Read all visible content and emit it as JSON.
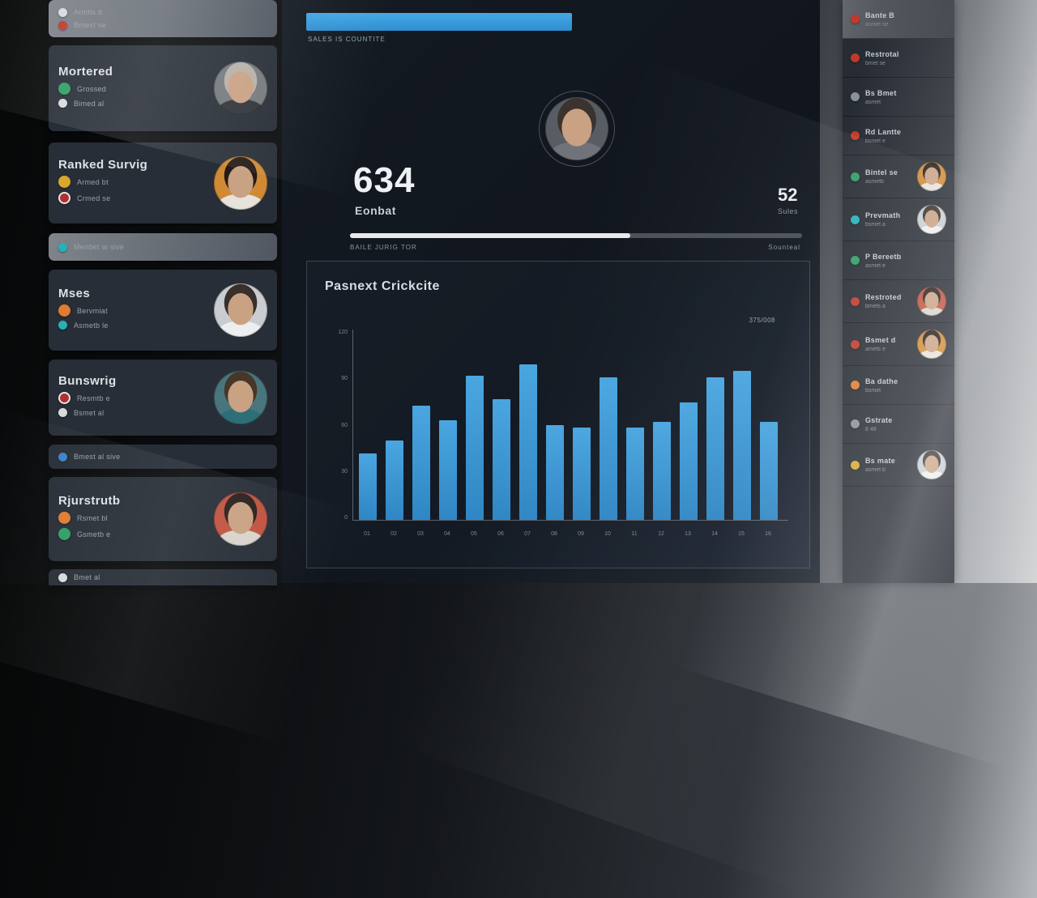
{
  "colors": {
    "accent_blue": "#3a9fdf",
    "bar_blue": "#3796d6",
    "progress_fill": "#e8e9ea",
    "progress_track": "#4a4f55",
    "panel_bg": "#141a22"
  },
  "left_sidebar": {
    "cards": [
      {
        "rows": [
          {
            "icon": "white-circle",
            "text": "Armtis b"
          },
          {
            "icon": "red-circle",
            "text": "Bmest se"
          }
        ]
      },
      {
        "title": "Mortered",
        "rows": [
          {
            "icon": "green-circle",
            "text": "Grossed"
          },
          {
            "icon": "white-circle",
            "text": "Bimed al"
          }
        ],
        "avatar": "man-gray"
      },
      {
        "title": "Ranked Survig",
        "rows": [
          {
            "icon": "yellow-circle",
            "text": "Armed bt"
          },
          {
            "icon": "red-badge",
            "text": "Crmed se"
          }
        ],
        "avatar": "woman-orange"
      },
      {
        "rows": [
          {
            "icon": "teal-circle",
            "text": "Menbet al sive"
          }
        ]
      },
      {
        "title": "Mses",
        "rows": [
          {
            "icon": "orange-circle",
            "text": "Bervmiat"
          },
          {
            "icon": "teal-circle",
            "text": "Asmetb le"
          }
        ],
        "avatar": "woman-light"
      },
      {
        "title": "Bunswrig",
        "rows": [
          {
            "icon": "red-badge",
            "text": "Resmtb e"
          },
          {
            "icon": "white-circle",
            "text": "Bsmet al"
          }
        ],
        "avatar": "man-teal"
      },
      {
        "rows": [
          {
            "icon": "blue-circle",
            "text": "Bmest al sive"
          }
        ]
      },
      {
        "title": "Rjurstrutb",
        "rows": [
          {
            "icon": "orange-circle",
            "text": "Rsmet bl"
          },
          {
            "icon": "green-circle",
            "text": "Gsmetb e"
          }
        ],
        "avatar": "woman-red"
      },
      {
        "rows": [
          {
            "icon": "white-circle",
            "text": "Bmet al"
          }
        ]
      }
    ]
  },
  "main": {
    "top_progress_label": "Sales is countite",
    "stat_primary": {
      "value": "634",
      "label": "Eonbat"
    },
    "stat_secondary": {
      "value": "52",
      "label": "Sules"
    },
    "mid_progress": {
      "percent": 62,
      "left_label": "Baile jurig tor",
      "right_label": "Sounteal"
    }
  },
  "chart_data": {
    "type": "bar",
    "title": "Pasnext Crickcite",
    "corner_label": "375/008",
    "x": [
      "01",
      "02",
      "03",
      "04",
      "05",
      "06",
      "07",
      "08",
      "09",
      "10",
      "11",
      "12",
      "13",
      "14",
      "15",
      "16"
    ],
    "values": [
      42,
      50,
      72,
      63,
      91,
      76,
      98,
      60,
      58,
      90,
      58,
      62,
      74,
      90,
      94,
      62
    ],
    "ylim": [
      0,
      120
    ],
    "yticks": [
      0,
      30,
      60,
      90,
      120
    ],
    "xlabel": "",
    "ylabel": "",
    "bar_color": "#3796d6",
    "grid": false,
    "legend": "none"
  },
  "right_sidebar": {
    "items": [
      {
        "icon": "red-circle",
        "line1": "Bante B",
        "line2": "asmet se"
      },
      {
        "icon": "red-circle",
        "line1": "Restrotal",
        "line2": "bmet se"
      },
      {
        "icon": "gray-circle",
        "line1": "Bs Bmet",
        "line2": "asmet"
      },
      {
        "icon": "red-circle",
        "line1": "Rd Lantte",
        "line2": "bsmet e"
      },
      {
        "icon": "green-circle",
        "line1": "Bintel se",
        "line2": "asmetb",
        "avatar": "woman-orange"
      },
      {
        "icon": "teal-circle",
        "line1": "Prevmath",
        "line2": "bsmet a",
        "avatar": "woman-light"
      },
      {
        "icon": "green-circle",
        "line1": "P Bereetb",
        "line2": "asmet e"
      },
      {
        "icon": "red-circle",
        "line1": "Restroted",
        "line2": "bmets a",
        "avatar": "woman-red"
      },
      {
        "icon": "red-circle",
        "line1": "Bsmet d",
        "line2": "amets e",
        "avatar": "woman-orange"
      },
      {
        "icon": "orange-circle",
        "line1": "Ba dathe",
        "line2": "bsmet"
      },
      {
        "icon": "gray-circle",
        "line1": "Gstrate",
        "line2": "8 48"
      },
      {
        "icon": "yellow-circle",
        "line1": "Bs mate",
        "line2": "asmet b",
        "avatar": "woman-light"
      }
    ]
  }
}
